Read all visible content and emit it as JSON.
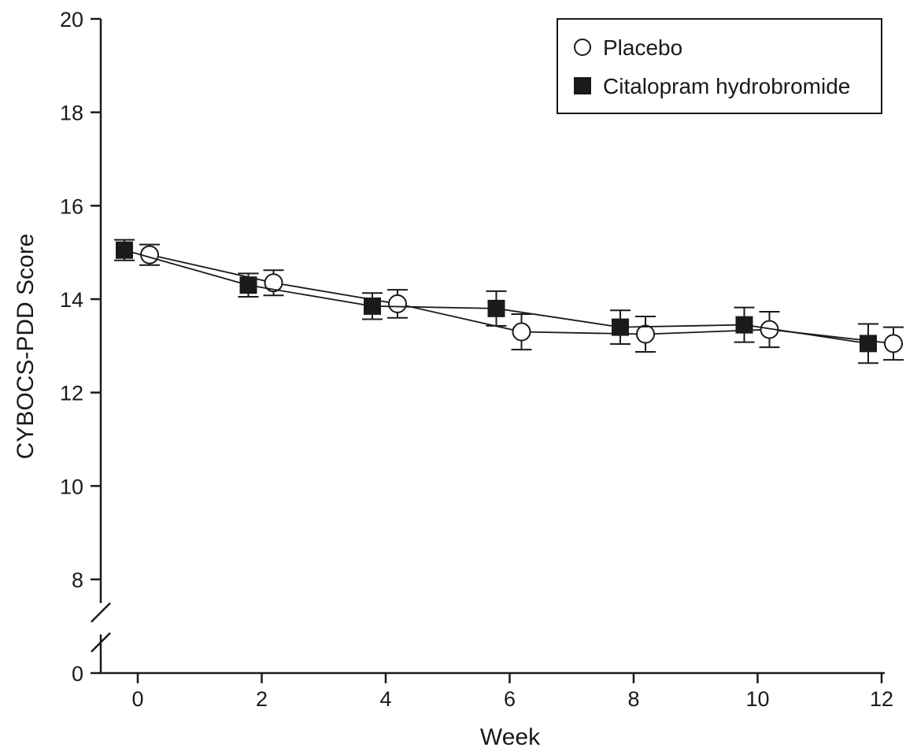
{
  "chart_data": {
    "type": "line",
    "title": "",
    "xlabel": "Week",
    "ylabel": "CYBOCS-PDD Score",
    "x_ticks": [
      "0",
      "2",
      "4",
      "6",
      "8",
      "10",
      "12"
    ],
    "y_ticks": [
      "0",
      "8",
      "10",
      "12",
      "14",
      "16",
      "18",
      "20"
    ],
    "xlim": [
      -0.6,
      12
    ],
    "ylim": [
      0,
      20
    ],
    "y_axis_break": "between 0 and 8",
    "grid": false,
    "legend_position": "top-right",
    "series": [
      {
        "name": "Placebo",
        "marker": "open-circle",
        "color": "#1a1a1a",
        "x": [
          0,
          2,
          4,
          6,
          8,
          10,
          12
        ],
        "y": [
          14.95,
          14.35,
          13.9,
          13.3,
          13.25,
          13.35,
          13.05
        ],
        "error": [
          0.22,
          0.27,
          0.3,
          0.38,
          0.38,
          0.38,
          0.35
        ]
      },
      {
        "name": "Citalopram hydrobromide",
        "marker": "filled-square",
        "color": "#1a1a1a",
        "x": [
          0,
          2,
          4,
          6,
          8,
          10,
          12
        ],
        "y": [
          15.05,
          14.3,
          13.85,
          13.8,
          13.4,
          13.45,
          13.05
        ],
        "error": [
          0.22,
          0.25,
          0.28,
          0.37,
          0.36,
          0.37,
          0.42
        ]
      }
    ]
  }
}
